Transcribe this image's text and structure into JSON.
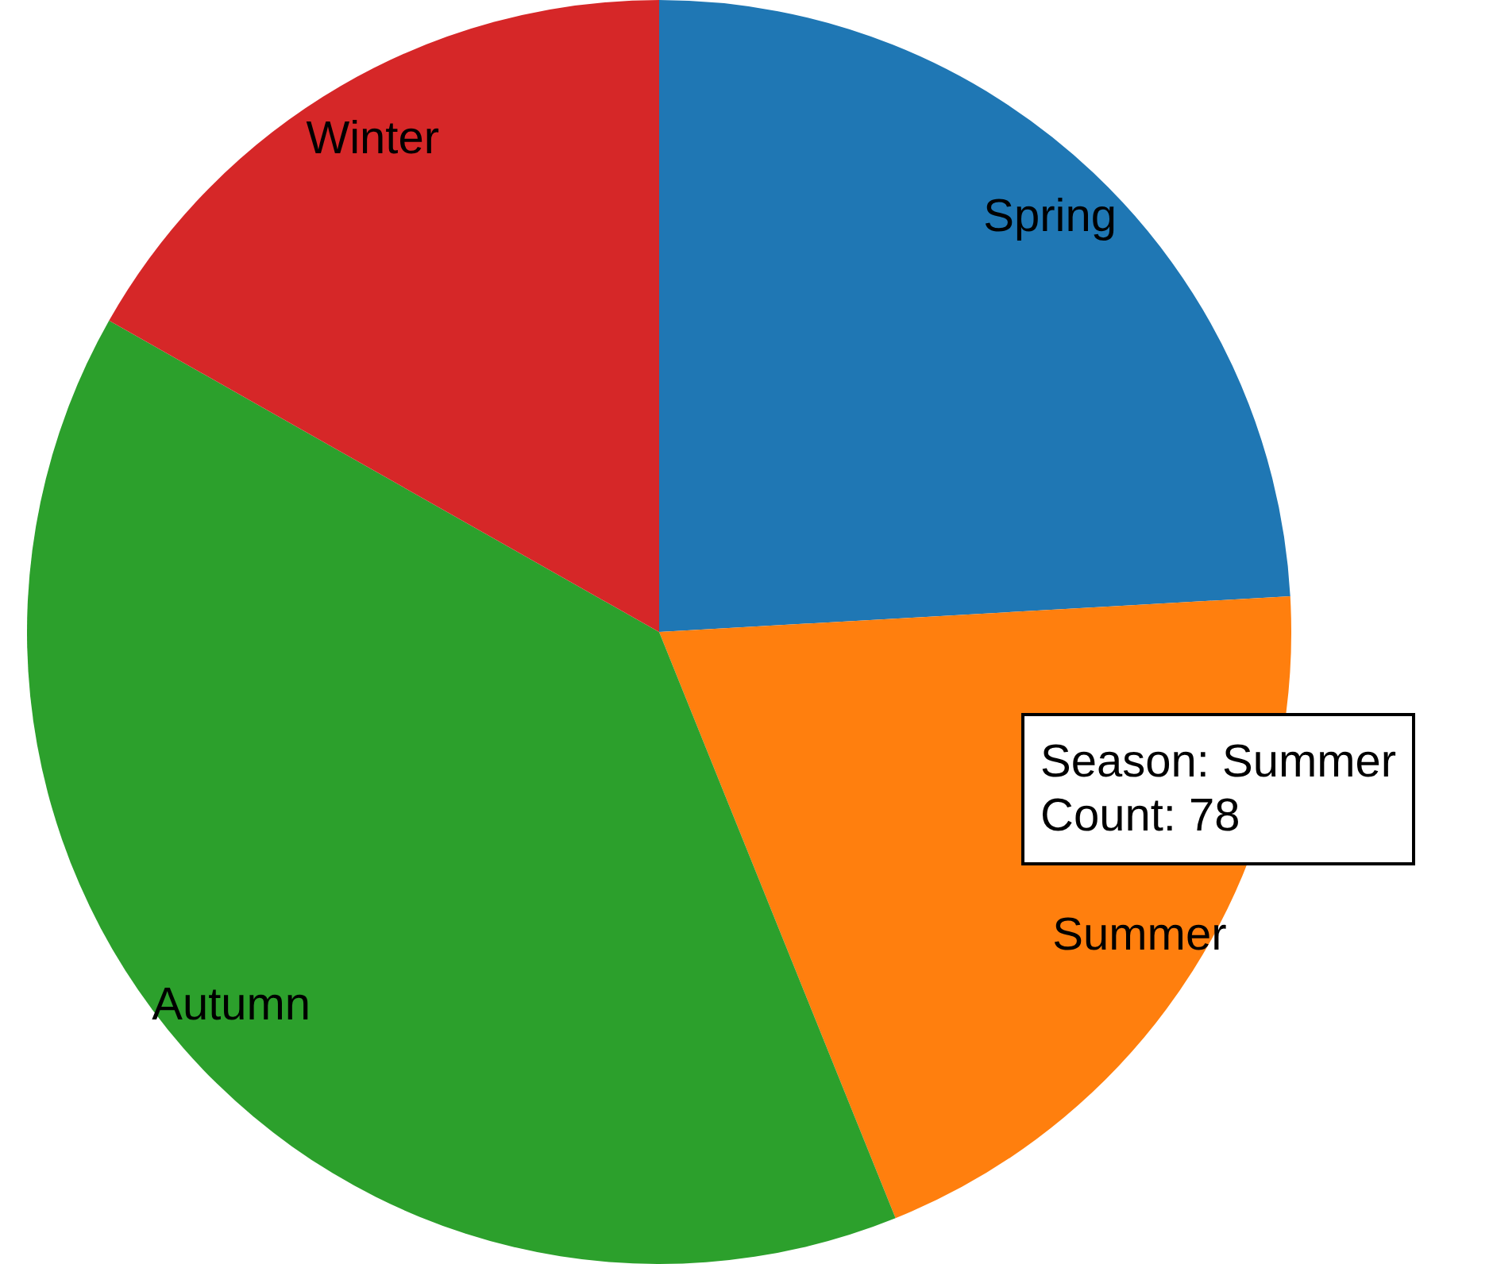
{
  "chart_data": {
    "type": "pie",
    "categories": [
      "Spring",
      "Summer",
      "Autumn",
      "Winter"
    ],
    "values": [
      24.1,
      19.8,
      39.3,
      16.8
    ],
    "colors": [
      "#1f77b4",
      "#ff7f0e",
      "#2ca02c",
      "#d62728"
    ],
    "annotations": [
      "Season: Summer\nCount: 78"
    ]
  }
}
